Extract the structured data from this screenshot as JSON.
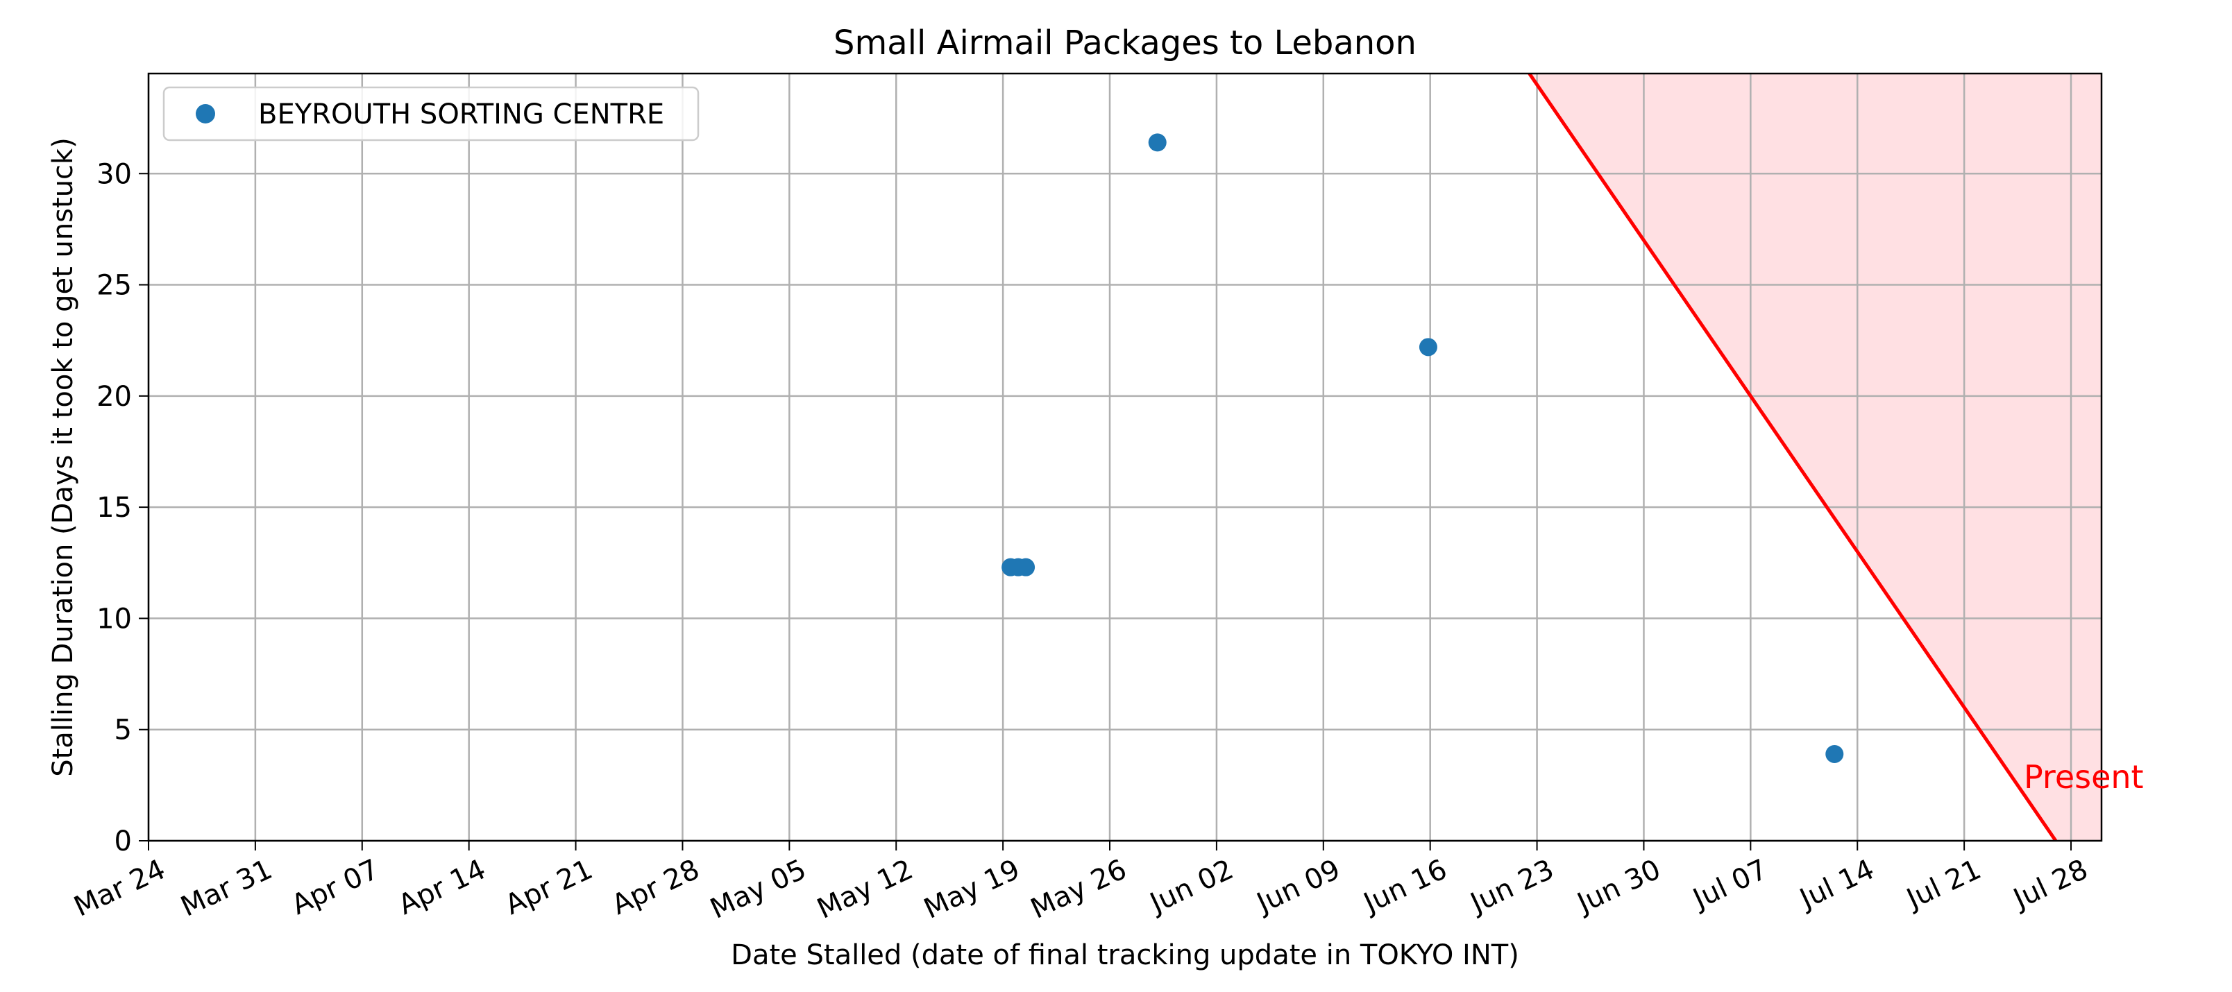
{
  "chart_data": {
    "type": "scatter",
    "title": "Small Airmail Packages to Lebanon",
    "xlabel": "Date Stalled (date of final tracking update in TOKYO INT)",
    "ylabel": "Stalling Duration (Days it took to get unstuck)",
    "x_axis_type": "date",
    "xlim": [
      "2024-03-24",
      "2024-07-30"
    ],
    "ylim": [
      0,
      34.5
    ],
    "x_ticks": [
      {
        "date": "2024-03-24",
        "label": "Mar 24"
      },
      {
        "date": "2024-03-31",
        "label": "Mar 31"
      },
      {
        "date": "2024-04-07",
        "label": "Apr 07"
      },
      {
        "date": "2024-04-14",
        "label": "Apr 14"
      },
      {
        "date": "2024-04-21",
        "label": "Apr 21"
      },
      {
        "date": "2024-04-28",
        "label": "Apr 28"
      },
      {
        "date": "2024-05-05",
        "label": "May 05"
      },
      {
        "date": "2024-05-12",
        "label": "May 12"
      },
      {
        "date": "2024-05-19",
        "label": "May 19"
      },
      {
        "date": "2024-05-26",
        "label": "May 26"
      },
      {
        "date": "2024-06-02",
        "label": "Jun 02"
      },
      {
        "date": "2024-06-09",
        "label": "Jun 09"
      },
      {
        "date": "2024-06-16",
        "label": "Jun 16"
      },
      {
        "date": "2024-06-23",
        "label": "Jun 23"
      },
      {
        "date": "2024-06-30",
        "label": "Jun 30"
      },
      {
        "date": "2024-07-07",
        "label": "Jul 07"
      },
      {
        "date": "2024-07-14",
        "label": "Jul 14"
      },
      {
        "date": "2024-07-21",
        "label": "Jul 21"
      },
      {
        "date": "2024-07-28",
        "label": "Jul 28"
      }
    ],
    "y_ticks": [
      {
        "value": 0,
        "label": "0"
      },
      {
        "value": 5,
        "label": "5"
      },
      {
        "value": 10,
        "label": "10"
      },
      {
        "value": 15,
        "label": "15"
      },
      {
        "value": 20,
        "label": "20"
      },
      {
        "value": 25,
        "label": "25"
      },
      {
        "value": 30,
        "label": "30"
      }
    ],
    "grid": true,
    "legend_position": "top-left",
    "series": [
      {
        "name": "BEYROUTH SORTING CENTRE",
        "color": "#1f77b4",
        "points": [
          {
            "x": "2024-05-19T12:00",
            "y": 12.3
          },
          {
            "x": "2024-05-20T00:00",
            "y": 12.3
          },
          {
            "x": "2024-05-20T12:00",
            "y": 12.3
          },
          {
            "x": "2024-05-29T03:00",
            "y": 31.4
          },
          {
            "x": "2024-06-15T21:00",
            "y": 22.2
          },
          {
            "x": "2024-07-12T12:00",
            "y": 3.9
          }
        ]
      }
    ],
    "present_line": {
      "label": "Present",
      "date": "2024-07-27",
      "color": "#ff0000",
      "fill_color": "#ffe0e3"
    }
  }
}
